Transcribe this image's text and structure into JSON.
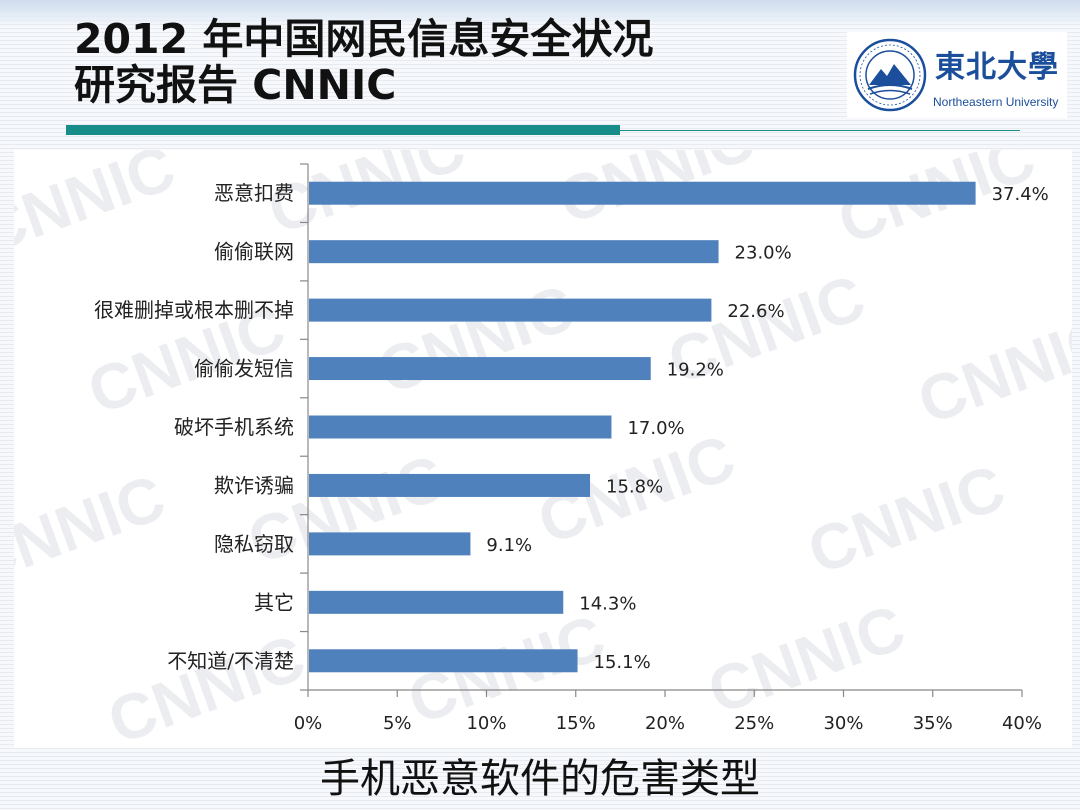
{
  "slide": {
    "title_line1": "2012 年中国网民信息安全状况",
    "title_line2": "研究报告 CNNIC",
    "caption": "手机恶意软件的危害类型",
    "accent_color": "#188c88"
  },
  "logo": {
    "name_cn": "東北大學",
    "name_en": "Northeastern University",
    "color": "#1b4f9b"
  },
  "watermark": {
    "text": "CNNIC"
  },
  "chart_data": {
    "type": "bar",
    "orientation": "horizontal",
    "categories": [
      "恶意扣费",
      "偷偷联网",
      "很难删掉或根本删不掉",
      "偷偷发短信",
      "破坏手机系统",
      "欺诈诱骗",
      "隐私窃取",
      "其它",
      "不知道/不清楚"
    ],
    "values": [
      37.4,
      23.0,
      22.6,
      19.2,
      17.0,
      15.8,
      9.1,
      14.3,
      15.1
    ],
    "value_labels": [
      "37.4%",
      "23.0%",
      "22.6%",
      "19.2%",
      "17.0%",
      "15.8%",
      "9.1%",
      "14.3%",
      "15.1%"
    ],
    "xlim": [
      0,
      40
    ],
    "x_ticks": [
      0,
      5,
      10,
      15,
      20,
      25,
      30,
      35,
      40
    ],
    "x_tick_labels": [
      "0%",
      "5%",
      "10%",
      "15%",
      "20%",
      "25%",
      "30%",
      "35%",
      "40%"
    ],
    "bar_color": "#4f81bd",
    "title": "",
    "xlabel": "",
    "ylabel": "",
    "grid": false,
    "legend": "none"
  }
}
